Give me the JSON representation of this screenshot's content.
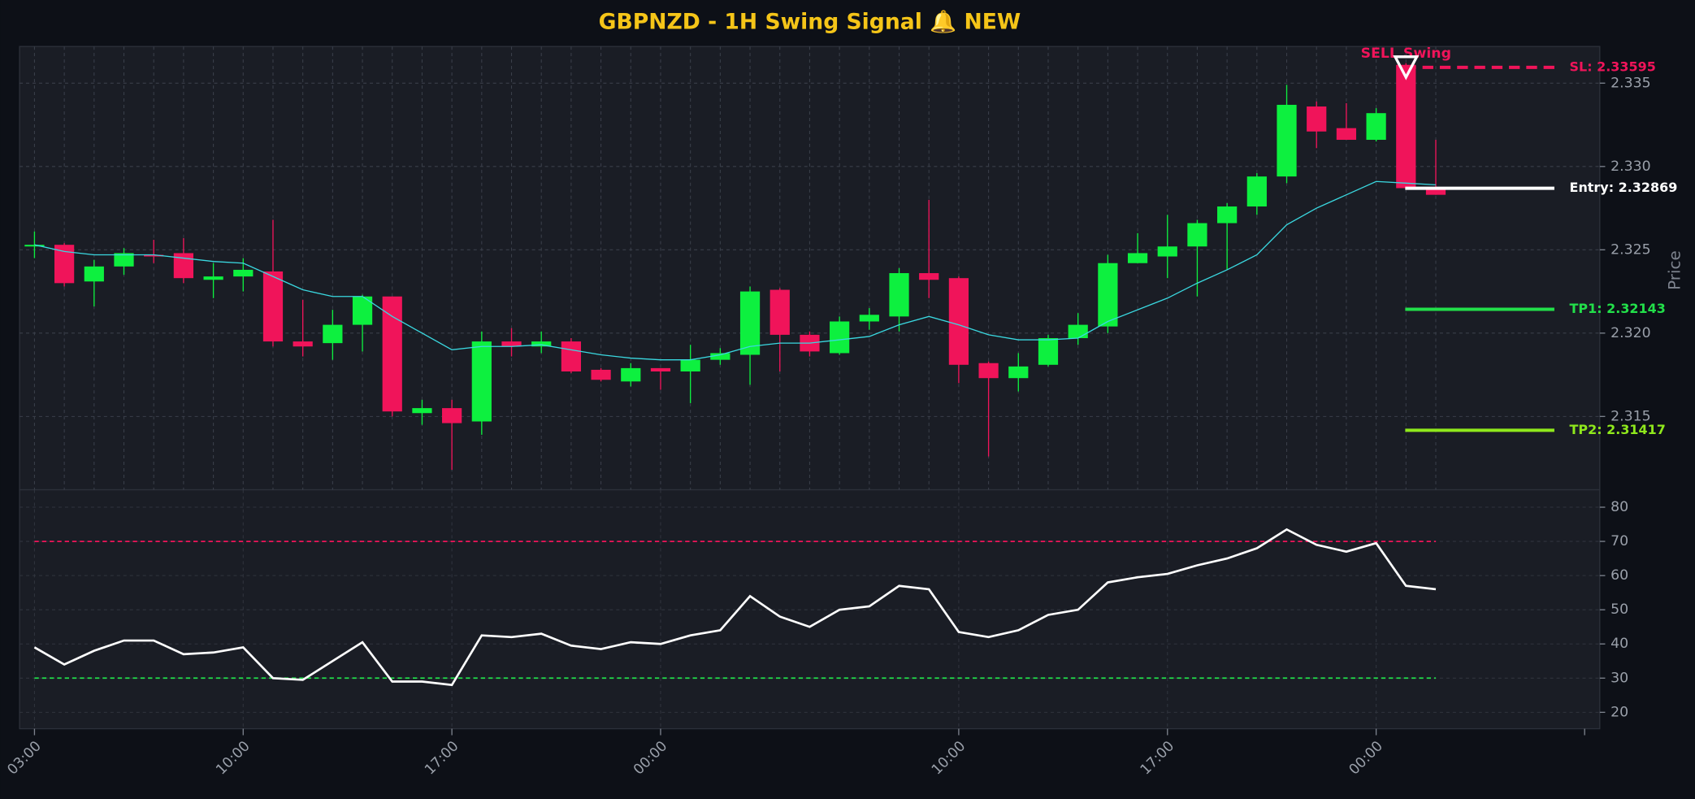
{
  "chart_data": [
    {
      "type": "candlestick",
      "title": "GBPNZD - 1H Swing Signal 🔔 NEW",
      "ylabel": "Price",
      "categories": [
        "03:00",
        null,
        null,
        null,
        null,
        null,
        null,
        "10:00",
        null,
        null,
        null,
        null,
        null,
        null,
        "17:00",
        null,
        null,
        null,
        null,
        null,
        null,
        "00:00",
        null,
        null,
        null,
        null,
        null,
        null,
        null,
        null,
        null,
        "10:00",
        null,
        null,
        null,
        null,
        null,
        null,
        "17:00",
        null,
        null,
        null,
        null,
        null,
        null,
        "00:00",
        null,
        null
      ],
      "xlim": [
        -0.5,
        52.5
      ],
      "ylim": [
        2.3106,
        2.3372
      ],
      "yticks": [
        2.315,
        {
          "value": 2.32,
          "label": "2.320"
        },
        2.325,
        {
          "value": 2.33,
          "label": "2.330"
        },
        2.335
      ],
      "grid": true,
      "up_color": "#0df03f",
      "down_color": "#f0145a",
      "open": [
        2.3252,
        2.3253,
        2.3231,
        2.324,
        2.3247,
        2.3248,
        2.3232,
        2.3234,
        2.3237,
        2.3195,
        2.3194,
        2.3205,
        2.3222,
        2.3152,
        2.3155,
        2.3147,
        2.3195,
        2.3192,
        2.3195,
        2.3178,
        2.3171,
        2.3179,
        2.3177,
        2.3184,
        2.3187,
        2.3226,
        2.3199,
        2.3188,
        2.3207,
        2.321,
        2.3236,
        2.3233,
        2.3182,
        2.3173,
        2.3181,
        2.3197,
        2.3204,
        2.3242,
        2.3246,
        2.3252,
        2.3266,
        2.3276,
        2.3294,
        2.3336,
        2.3323,
        2.3316,
        2.3361,
        2.3287
      ],
      "high": [
        2.3261,
        2.3254,
        2.3244,
        2.3251,
        2.3256,
        2.3257,
        2.3242,
        2.3245,
        2.3268,
        2.322,
        2.3214,
        2.3223,
        2.3222,
        2.316,
        2.316,
        2.3201,
        2.3203,
        2.3201,
        2.3197,
        2.3179,
        2.3182,
        2.3179,
        2.3193,
        2.3191,
        2.3228,
        2.3227,
        2.3201,
        2.321,
        2.3215,
        2.3239,
        2.328,
        2.3234,
        2.3183,
        2.3188,
        2.3199,
        2.3212,
        2.3247,
        2.326,
        2.3271,
        2.3268,
        2.3278,
        2.3296,
        2.3349,
        2.3339,
        2.3338,
        2.3335,
        2.3362,
        2.3316
      ],
      "low": [
        2.3245,
        2.3228,
        2.3216,
        2.3235,
        2.3242,
        2.323,
        2.3221,
        2.3225,
        2.3192,
        2.3186,
        2.3184,
        2.3189,
        2.315,
        2.3145,
        2.3118,
        2.3139,
        2.3186,
        2.3188,
        2.3176,
        2.3171,
        2.3168,
        2.3166,
        2.3158,
        2.3181,
        2.3169,
        2.3177,
        2.3186,
        2.3187,
        2.3202,
        2.3201,
        2.3221,
        2.317,
        2.3126,
        2.3165,
        2.318,
        2.3193,
        2.32,
        2.3242,
        2.3233,
        2.3222,
        2.3238,
        2.3271,
        2.329,
        2.3311,
        2.3316,
        2.3315,
        2.3287,
        2.3283
      ],
      "close": [
        2.3253,
        2.323,
        2.324,
        2.3248,
        2.3246,
        2.3233,
        2.3234,
        2.3238,
        2.3195,
        2.3192,
        2.3205,
        2.3222,
        2.3153,
        2.3155,
        2.3146,
        2.3195,
        2.3192,
        2.3195,
        2.3177,
        2.3172,
        2.3179,
        2.3177,
        2.3184,
        2.3188,
        2.3225,
        2.3199,
        2.3189,
        2.3207,
        2.3211,
        2.3236,
        2.3232,
        2.3181,
        2.3173,
        2.318,
        2.3197,
        2.3205,
        2.3242,
        2.3248,
        2.3252,
        2.3266,
        2.3276,
        2.3294,
        2.3337,
        2.3321,
        2.3316,
        2.3332,
        2.3287,
        2.3283
      ],
      "ma": {
        "color": "#3ad8e0",
        "values": [
          2.3253,
          2.3249,
          2.3247,
          2.3247,
          2.3247,
          2.3245,
          2.3243,
          2.3242,
          2.3234,
          2.3226,
          2.3222,
          2.3222,
          2.321,
          2.32,
          2.319,
          2.3192,
          2.3192,
          2.3193,
          2.319,
          2.3187,
          2.3185,
          2.3184,
          2.3184,
          2.3187,
          2.3192,
          2.3194,
          2.3194,
          2.3196,
          2.3198,
          2.3205,
          2.321,
          2.3205,
          2.3199,
          2.3196,
          2.3196,
          2.3197,
          2.3207,
          2.3214,
          2.3221,
          2.323,
          2.3238,
          2.3247,
          2.3265,
          2.3275,
          2.3283,
          2.3291,
          2.329,
          2.3289
        ]
      },
      "levels": [
        {
          "label": "SL: 2.33595",
          "value": 2.33595,
          "color": "#f0145a",
          "dashed": true
        },
        {
          "label": "Entry: 2.32869",
          "value": 2.32869,
          "color": "#ffffff",
          "dashed": false
        },
        {
          "label": "TP1: 2.32143",
          "value": 2.32143,
          "color": "#22e04a",
          "dashed": false
        },
        {
          "label": "TP2: 2.31417",
          "value": 2.31417,
          "color": "#8fe81c",
          "dashed": false
        }
      ],
      "signal": {
        "label": "SELL Swing",
        "x": 46,
        "price": 2.336,
        "color": "#f0145a"
      }
    },
    {
      "type": "line",
      "ylim": [
        15.2,
        85.1
      ],
      "yticks": [
        20,
        30,
        40,
        50,
        60,
        70,
        80
      ],
      "grid": true,
      "series": [
        {
          "color": "#ffffff",
          "values": [
            39,
            34,
            38,
            41,
            41,
            37,
            37.5,
            39,
            30,
            29.5,
            35,
            40.5,
            29,
            29,
            28,
            42.5,
            42,
            43,
            39.5,
            38.5,
            40.5,
            40,
            42.5,
            44,
            54,
            48,
            45,
            50,
            51,
            57,
            56,
            43.5,
            42,
            44,
            48.5,
            50,
            58,
            59.5,
            60.5,
            63,
            65,
            68,
            73.5,
            69,
            67,
            69.5,
            57,
            56
          ]
        }
      ],
      "thresholds": [
        {
          "value": 70,
          "color": "#f0145a"
        },
        {
          "value": 30,
          "color": "#22e04a"
        }
      ]
    }
  ]
}
